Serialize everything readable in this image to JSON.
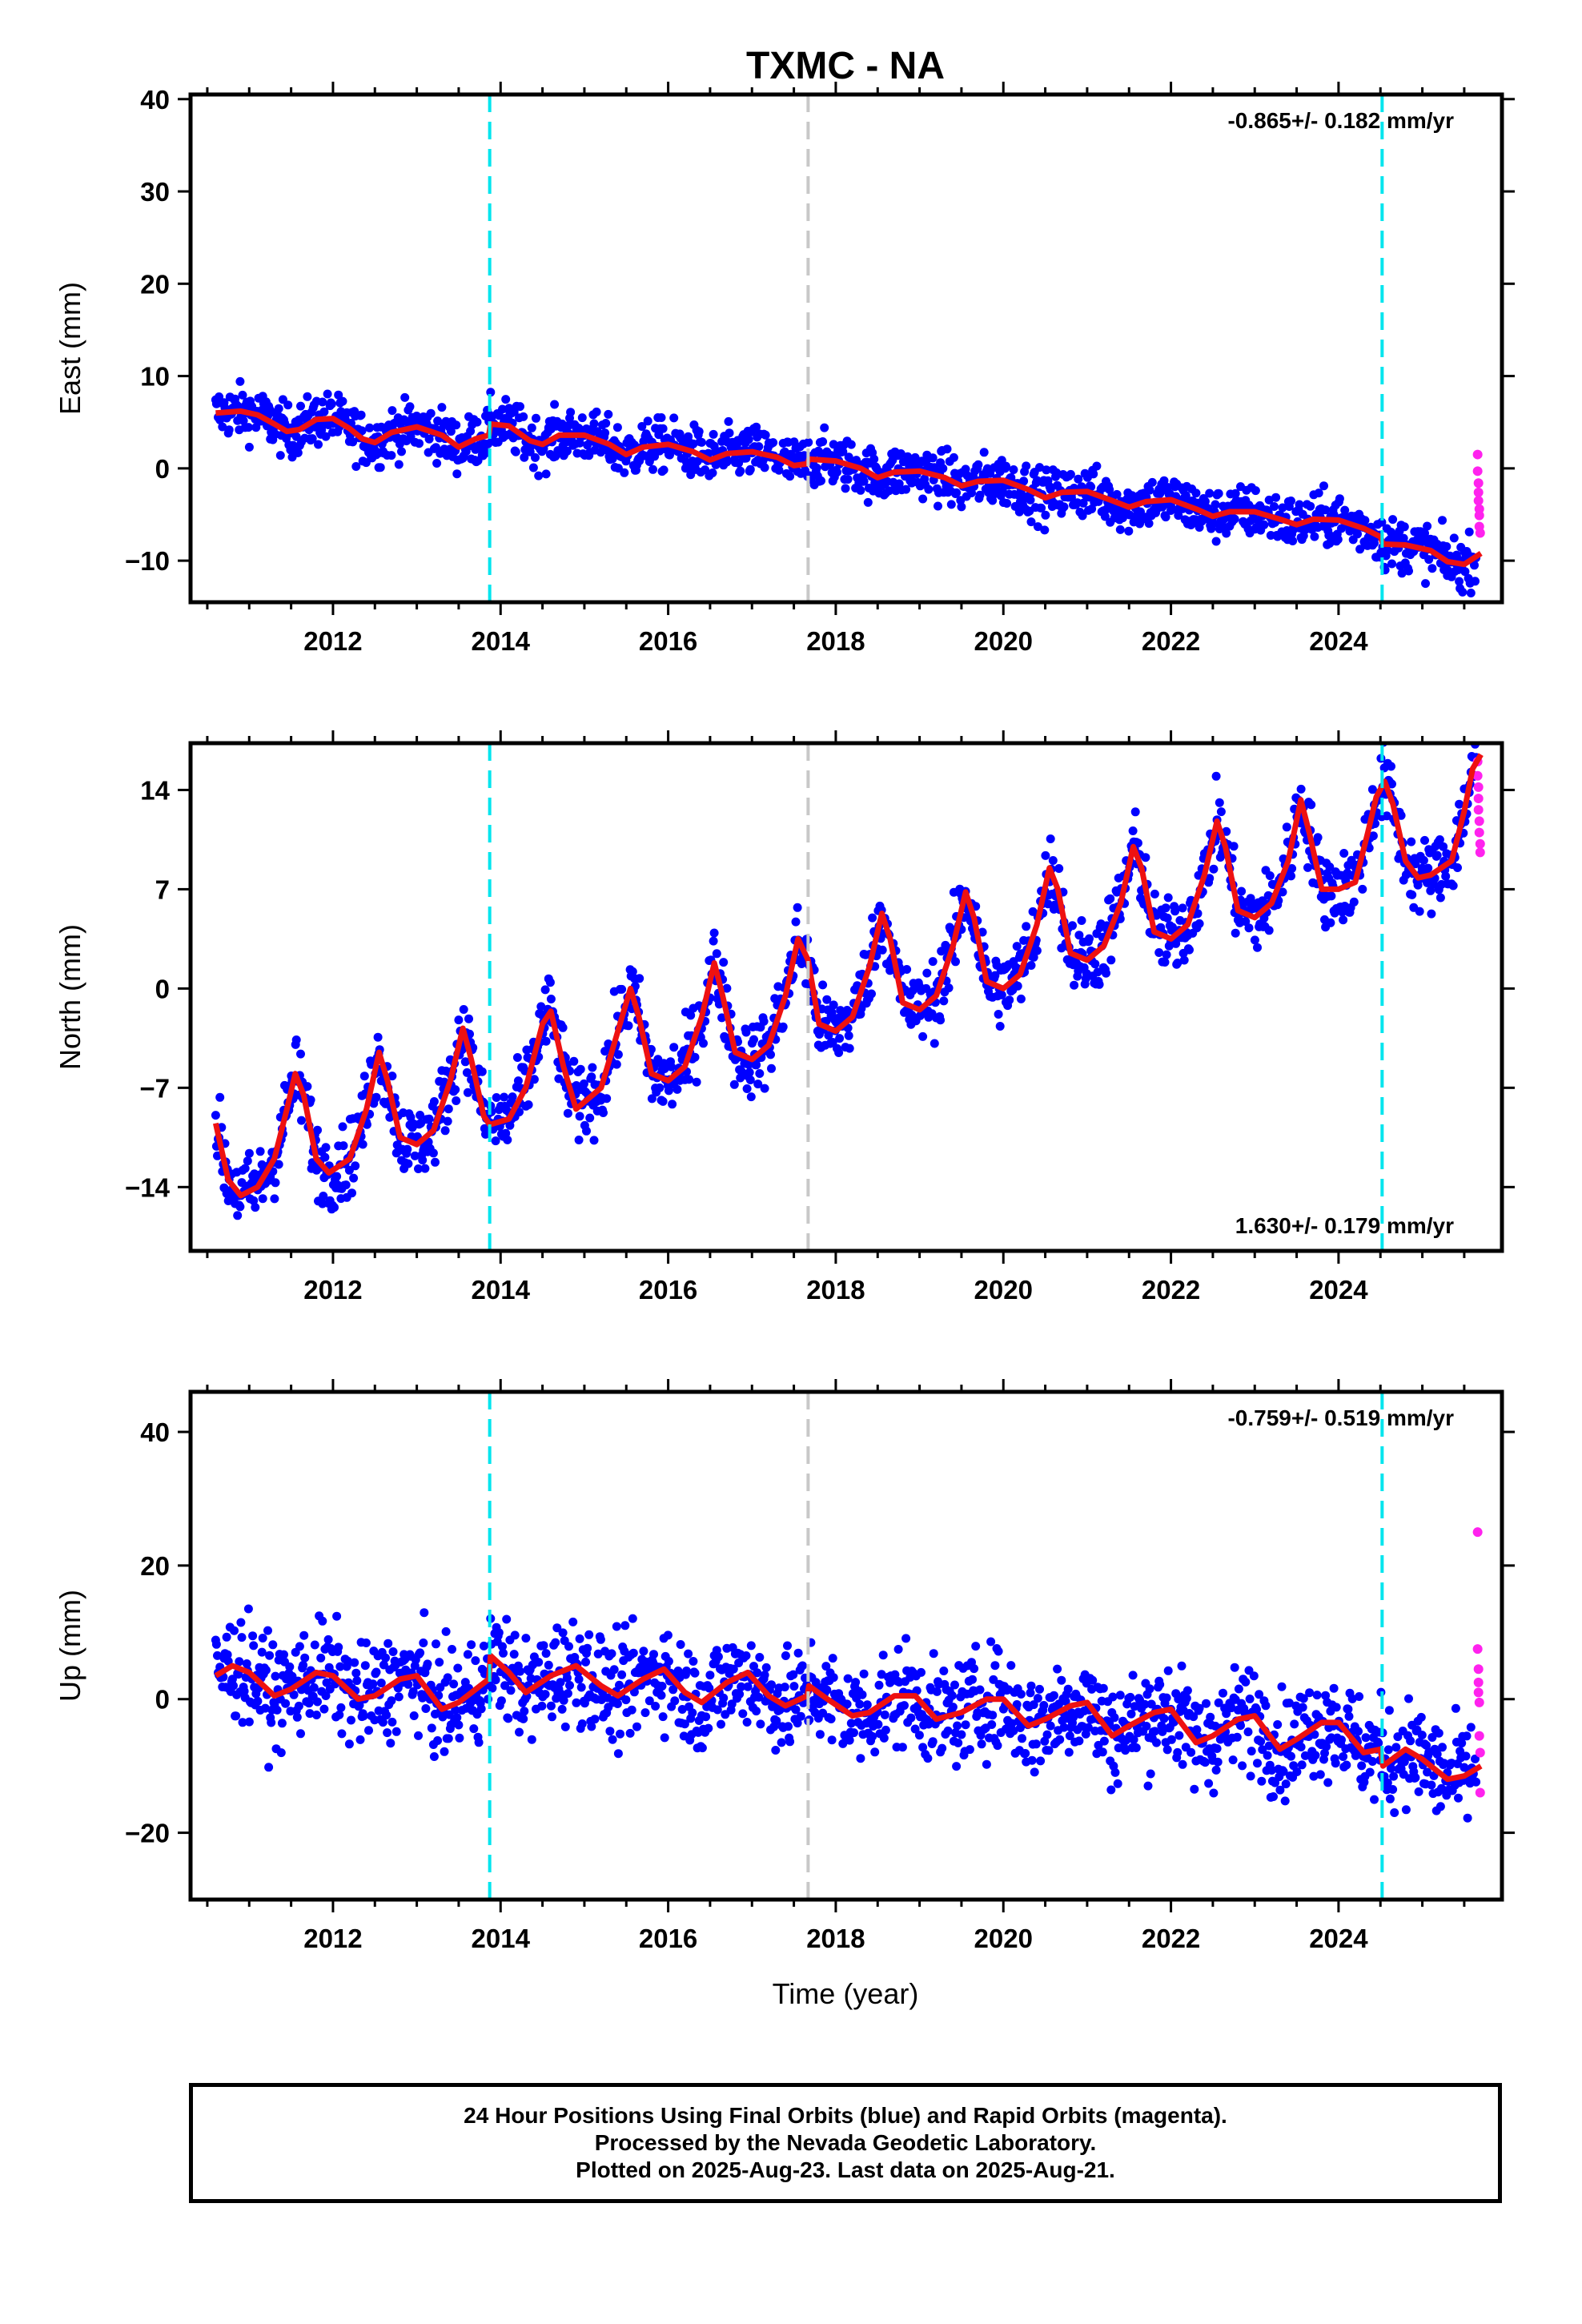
{
  "colors": {
    "final_orbits": "#0000ff",
    "rapid_orbits": "#ff22ee",
    "model_fit": "#ee1111",
    "equipment_change": "#00e5ee",
    "earthquake_offset": "#c8c8c8"
  },
  "chart_data": {
    "type": "scatter",
    "title": "TXMC - NA",
    "xlabel": "Time (year)",
    "xlim": [
      2010.3,
      2025.95
    ],
    "x_ticks": [
      "2012",
      "2014",
      "2016",
      "2018",
      "2020",
      "2022",
      "2024"
    ],
    "events": {
      "equipment_change_years": [
        2013.87,
        2024.52
      ],
      "other_offset_years": [
        2017.67
      ]
    },
    "panels": [
      {
        "name": "east",
        "ylabel": "East (mm)",
        "ylim": [
          -14.5,
          40.5
        ],
        "y_ticks": [
          40,
          30,
          20,
          10,
          0,
          -10
        ],
        "y_tick_labels": [
          "40",
          "30",
          "20",
          "10",
          "0",
          "−10"
        ],
        "rate_text": "-0.865+/- 0.182 mm/yr",
        "rate_position": "top-right",
        "scatter_spread_mm": 1.4,
        "fit_points": [
          [
            2010.6,
            6.0
          ],
          [
            2010.9,
            6.2
          ],
          [
            2011.1,
            5.8
          ],
          [
            2011.3,
            4.8
          ],
          [
            2011.45,
            4.0
          ],
          [
            2011.6,
            4.2
          ],
          [
            2011.8,
            5.3
          ],
          [
            2012.0,
            5.4
          ],
          [
            2012.2,
            4.3
          ],
          [
            2012.35,
            3.2
          ],
          [
            2012.5,
            2.8
          ],
          [
            2012.7,
            3.9
          ],
          [
            2013.0,
            4.5
          ],
          [
            2013.3,
            3.6
          ],
          [
            2013.5,
            2.3
          ],
          [
            2013.7,
            3.2
          ],
          [
            2013.86,
            3.6
          ],
          [
            2013.88,
            4.8
          ],
          [
            2014.1,
            4.6
          ],
          [
            2014.35,
            3.0
          ],
          [
            2014.5,
            2.6
          ],
          [
            2014.7,
            3.6
          ],
          [
            2015.0,
            3.6
          ],
          [
            2015.3,
            2.6
          ],
          [
            2015.5,
            1.5
          ],
          [
            2015.7,
            2.3
          ],
          [
            2016.0,
            2.6
          ],
          [
            2016.3,
            1.8
          ],
          [
            2016.5,
            0.9
          ],
          [
            2016.7,
            1.6
          ],
          [
            2017.0,
            1.8
          ],
          [
            2017.3,
            1.2
          ],
          [
            2017.5,
            0.3
          ],
          [
            2017.66,
            0.5
          ],
          [
            2017.68,
            1.0
          ],
          [
            2018.0,
            0.8
          ],
          [
            2018.3,
            0.0
          ],
          [
            2018.5,
            -1.0
          ],
          [
            2018.7,
            -0.4
          ],
          [
            2019.0,
            -0.3
          ],
          [
            2019.3,
            -1.0
          ],
          [
            2019.5,
            -1.9
          ],
          [
            2019.7,
            -1.4
          ],
          [
            2020.0,
            -1.3
          ],
          [
            2020.3,
            -2.3
          ],
          [
            2020.5,
            -3.2
          ],
          [
            2020.7,
            -2.6
          ],
          [
            2021.0,
            -2.5
          ],
          [
            2021.3,
            -3.5
          ],
          [
            2021.5,
            -4.2
          ],
          [
            2021.7,
            -3.6
          ],
          [
            2022.0,
            -3.4
          ],
          [
            2022.3,
            -4.4
          ],
          [
            2022.5,
            -5.2
          ],
          [
            2022.7,
            -4.7
          ],
          [
            2023.0,
            -4.7
          ],
          [
            2023.3,
            -5.5
          ],
          [
            2023.5,
            -6.1
          ],
          [
            2023.7,
            -5.5
          ],
          [
            2024.0,
            -5.6
          ],
          [
            2024.3,
            -6.5
          ],
          [
            2024.5,
            -7.4
          ],
          [
            2024.53,
            -8.2
          ],
          [
            2024.8,
            -8.3
          ],
          [
            2025.1,
            -8.9
          ],
          [
            2025.3,
            -10.1
          ],
          [
            2025.5,
            -10.4
          ],
          [
            2025.7,
            -9.2
          ]
        ],
        "rapid_orbit_points": [
          [
            2025.66,
            1.5
          ],
          [
            2025.66,
            -0.3
          ],
          [
            2025.67,
            -1.6
          ],
          [
            2025.67,
            -2.6
          ],
          [
            2025.67,
            -3.5
          ],
          [
            2025.68,
            -4.4
          ],
          [
            2025.68,
            -5.1
          ],
          [
            2025.68,
            -6.3
          ],
          [
            2025.69,
            -7.0
          ]
        ]
      },
      {
        "name": "north",
        "ylabel": "North (mm)",
        "ylim": [
          -18.5,
          17.3
        ],
        "y_ticks": [
          14,
          7,
          0,
          -7,
          -14
        ],
        "y_tick_labels": [
          "14",
          "7",
          "0",
          "−7",
          "−14"
        ],
        "rate_text": "1.630+/- 0.179 mm/yr",
        "rate_position": "bottom-right",
        "scatter_spread_mm": 1.3,
        "fit_points": [
          [
            2010.6,
            -9.5
          ],
          [
            2010.75,
            -13.5
          ],
          [
            2010.9,
            -14.6
          ],
          [
            2011.1,
            -14.0
          ],
          [
            2011.3,
            -12.0
          ],
          [
            2011.45,
            -8.5
          ],
          [
            2011.55,
            -6.0
          ],
          [
            2011.65,
            -7.5
          ],
          [
            2011.8,
            -12.0
          ],
          [
            2011.95,
            -13.0
          ],
          [
            2012.2,
            -12.0
          ],
          [
            2012.4,
            -8.5
          ],
          [
            2012.55,
            -4.5
          ],
          [
            2012.65,
            -6.5
          ],
          [
            2012.8,
            -10.5
          ],
          [
            2013.0,
            -11.0
          ],
          [
            2013.2,
            -10.0
          ],
          [
            2013.4,
            -6.5
          ],
          [
            2013.55,
            -2.8
          ],
          [
            2013.65,
            -5.0
          ],
          [
            2013.8,
            -9.0
          ],
          [
            2013.87,
            -9.6
          ],
          [
            2014.1,
            -9.2
          ],
          [
            2014.3,
            -7.0
          ],
          [
            2014.5,
            -2.5
          ],
          [
            2014.6,
            -1.6
          ],
          [
            2014.75,
            -5.5
          ],
          [
            2014.9,
            -8.5
          ],
          [
            2015.2,
            -7.0
          ],
          [
            2015.4,
            -3.0
          ],
          [
            2015.55,
            0.0
          ],
          [
            2015.65,
            -2.0
          ],
          [
            2015.8,
            -6.0
          ],
          [
            2016.0,
            -6.5
          ],
          [
            2016.2,
            -5.5
          ],
          [
            2016.4,
            -2.0
          ],
          [
            2016.55,
            1.8
          ],
          [
            2016.65,
            -0.5
          ],
          [
            2016.8,
            -4.5
          ],
          [
            2017.0,
            -5.0
          ],
          [
            2017.2,
            -4.0
          ],
          [
            2017.4,
            -0.5
          ],
          [
            2017.55,
            3.5
          ],
          [
            2017.67,
            2.0
          ],
          [
            2017.8,
            -2.5
          ],
          [
            2018.0,
            -3.0
          ],
          [
            2018.2,
            -2.0
          ],
          [
            2018.4,
            1.5
          ],
          [
            2018.55,
            5.3
          ],
          [
            2018.65,
            3.5
          ],
          [
            2018.8,
            -1.0
          ],
          [
            2019.0,
            -1.5
          ],
          [
            2019.2,
            -0.5
          ],
          [
            2019.4,
            3.0
          ],
          [
            2019.55,
            6.8
          ],
          [
            2019.65,
            5.0
          ],
          [
            2019.8,
            0.5
          ],
          [
            2020.0,
            0.0
          ],
          [
            2020.2,
            1.0
          ],
          [
            2020.4,
            4.5
          ],
          [
            2020.55,
            8.5
          ],
          [
            2020.65,
            7.0
          ],
          [
            2020.8,
            2.5
          ],
          [
            2021.0,
            2.0
          ],
          [
            2021.2,
            3.0
          ],
          [
            2021.4,
            6.0
          ],
          [
            2021.55,
            10.0
          ],
          [
            2021.65,
            8.5
          ],
          [
            2021.8,
            4.0
          ],
          [
            2022.0,
            3.5
          ],
          [
            2022.2,
            4.5
          ],
          [
            2022.4,
            8.0
          ],
          [
            2022.55,
            11.8
          ],
          [
            2022.65,
            10.0
          ],
          [
            2022.8,
            5.5
          ],
          [
            2023.0,
            5.0
          ],
          [
            2023.2,
            6.0
          ],
          [
            2023.4,
            9.0
          ],
          [
            2023.55,
            13.3
          ],
          [
            2023.65,
            11.0
          ],
          [
            2023.8,
            7.0
          ],
          [
            2024.0,
            7.0
          ],
          [
            2024.2,
            7.5
          ],
          [
            2024.35,
            11.0
          ],
          [
            2024.45,
            13.5
          ],
          [
            2024.55,
            14.6
          ],
          [
            2024.65,
            13.0
          ],
          [
            2024.8,
            9.0
          ],
          [
            2024.95,
            7.8
          ],
          [
            2025.1,
            8.0
          ],
          [
            2025.35,
            9.0
          ],
          [
            2025.5,
            12.5
          ],
          [
            2025.6,
            15.5
          ],
          [
            2025.7,
            16.5
          ]
        ],
        "rapid_orbit_points": [
          [
            2025.66,
            16.0
          ],
          [
            2025.66,
            15.0
          ],
          [
            2025.67,
            14.2
          ],
          [
            2025.67,
            13.4
          ],
          [
            2025.67,
            12.6
          ],
          [
            2025.68,
            11.8
          ],
          [
            2025.68,
            11.0
          ],
          [
            2025.69,
            10.2
          ],
          [
            2025.69,
            9.6
          ]
        ]
      },
      {
        "name": "up",
        "ylabel": "Up (mm)",
        "ylim": [
          -30,
          46
        ],
        "y_ticks": [
          40,
          20,
          0,
          -20
        ],
        "y_tick_labels": [
          "40",
          "20",
          "0",
          "−20"
        ],
        "rate_text": "-0.759+/- 0.519 mm/yr",
        "rate_position": "top-right",
        "scatter_spread_mm": 3.8,
        "fit_points": [
          [
            2010.6,
            3.5
          ],
          [
            2010.8,
            5.0
          ],
          [
            2011.0,
            4.0
          ],
          [
            2011.3,
            0.5
          ],
          [
            2011.5,
            1.5
          ],
          [
            2011.8,
            4.0
          ],
          [
            2012.0,
            3.5
          ],
          [
            2012.3,
            0.0
          ],
          [
            2012.5,
            0.5
          ],
          [
            2012.8,
            3.0
          ],
          [
            2013.0,
            3.5
          ],
          [
            2013.3,
            -1.5
          ],
          [
            2013.5,
            -0.5
          ],
          [
            2013.86,
            3.0
          ],
          [
            2013.88,
            6.5
          ],
          [
            2014.1,
            4.0
          ],
          [
            2014.3,
            1.0
          ],
          [
            2014.6,
            3.5
          ],
          [
            2014.9,
            5.0
          ],
          [
            2015.2,
            2.0
          ],
          [
            2015.4,
            0.5
          ],
          [
            2015.7,
            3.0
          ],
          [
            2015.95,
            4.5
          ],
          [
            2016.2,
            1.0
          ],
          [
            2016.4,
            -0.5
          ],
          [
            2016.7,
            2.5
          ],
          [
            2016.95,
            4.0
          ],
          [
            2017.2,
            0.5
          ],
          [
            2017.4,
            -1.0
          ],
          [
            2017.66,
            0.5
          ],
          [
            2017.68,
            2.0
          ],
          [
            2017.9,
            0.0
          ],
          [
            2018.2,
            -2.5
          ],
          [
            2018.4,
            -2.0
          ],
          [
            2018.7,
            0.5
          ],
          [
            2018.95,
            0.5
          ],
          [
            2019.2,
            -3.0
          ],
          [
            2019.5,
            -2.0
          ],
          [
            2019.8,
            0.0
          ],
          [
            2020.0,
            0.0
          ],
          [
            2020.3,
            -4.0
          ],
          [
            2020.5,
            -3.0
          ],
          [
            2020.8,
            -1.0
          ],
          [
            2021.0,
            -0.5
          ],
          [
            2021.3,
            -5.5
          ],
          [
            2021.5,
            -4.0
          ],
          [
            2021.8,
            -2.0
          ],
          [
            2022.0,
            -1.5
          ],
          [
            2022.3,
            -6.5
          ],
          [
            2022.5,
            -5.5
          ],
          [
            2022.8,
            -3.0
          ],
          [
            2023.0,
            -2.5
          ],
          [
            2023.3,
            -7.5
          ],
          [
            2023.5,
            -6.0
          ],
          [
            2023.8,
            -3.5
          ],
          [
            2024.0,
            -3.5
          ],
          [
            2024.3,
            -8.0
          ],
          [
            2024.5,
            -7.5
          ],
          [
            2024.53,
            -10.0
          ],
          [
            2024.8,
            -7.5
          ],
          [
            2025.0,
            -9.0
          ],
          [
            2025.3,
            -12.0
          ],
          [
            2025.5,
            -11.5
          ],
          [
            2025.7,
            -10.0
          ]
        ],
        "rapid_orbit_points": [
          [
            2025.66,
            25.0
          ],
          [
            2025.66,
            7.5
          ],
          [
            2025.67,
            4.5
          ],
          [
            2025.67,
            2.5
          ],
          [
            2025.67,
            1.0
          ],
          [
            2025.68,
            -0.5
          ],
          [
            2025.68,
            -5.5
          ],
          [
            2025.69,
            -8.0
          ],
          [
            2025.69,
            -14.0
          ]
        ]
      }
    ]
  },
  "footer": {
    "line1": "24 Hour Positions Using Final Orbits (blue) and Rapid Orbits (magenta).",
    "line2": "Processed by the Nevada Geodetic Laboratory.",
    "line3": "Plotted on 2025-Aug-23. Last data on 2025-Aug-21."
  }
}
